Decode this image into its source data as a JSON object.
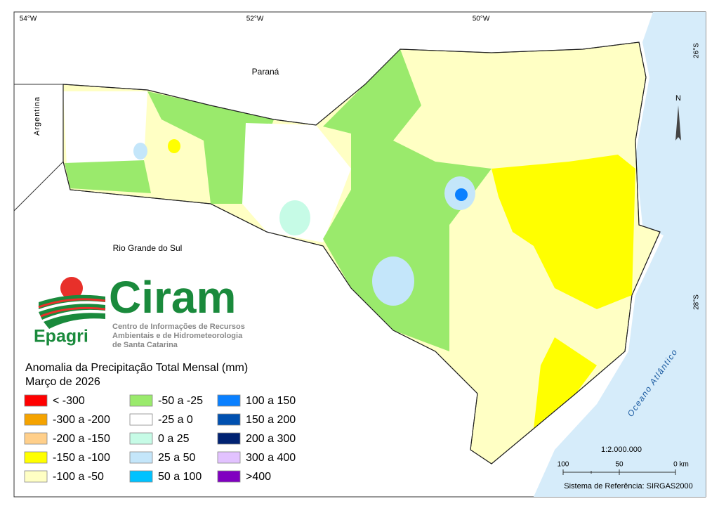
{
  "map": {
    "graticule_top": [
      "54°W",
      "52°W",
      "50°W"
    ],
    "graticule_right": [
      "26°S",
      "28°S"
    ],
    "places": {
      "north": "Paraná",
      "west": "Argentina",
      "south": "Rio Grande do Sul"
    },
    "ocean": "Oceano Atlântico",
    "north_arrow": "N"
  },
  "logo": {
    "name": "Ciram",
    "org": "Epagri",
    "subtitle": [
      "Centro de Informações de Recursos",
      "Ambientais e de Hidrometeorologia",
      "de Santa Catarina"
    ]
  },
  "legend": {
    "title": "Anomalia da Precipitação Total Mensal (mm)",
    "period": "Março de 2026",
    "items": [
      {
        "label": "< -300",
        "color": "#ff0000"
      },
      {
        "label": "-300 a -200",
        "color": "#f5a300"
      },
      {
        "label": "-200 a -150",
        "color": "#ffcf8a"
      },
      {
        "label": "-150 a -100",
        "color": "#ffff00"
      },
      {
        "label": "-100 a -50",
        "color": "#ffffc4"
      },
      {
        "label": "-50 a -25",
        "color": "#9aea6c"
      },
      {
        "label": "-25 a 0",
        "color": "#ffffff"
      },
      {
        "label": "0 a 25",
        "color": "#c6fbe6"
      },
      {
        "label": "25 a 50",
        "color": "#c4e6fa"
      },
      {
        "label": "50 a 100",
        "color": "#00c2ff"
      },
      {
        "label": "100 a 150",
        "color": "#0a80ff"
      },
      {
        "label": "150 a 200",
        "color": "#0050b0"
      },
      {
        "label": "200 a 300",
        "color": "#002272"
      },
      {
        "label": "300 a 400",
        "color": "#e2c2ff"
      },
      {
        "label": ">400",
        "color": "#8000c0"
      }
    ]
  },
  "scale": {
    "ratio": "1:2.000.000",
    "ticks": [
      "100",
      "50",
      "0 km"
    ]
  },
  "reference": "Sistema de Referência: SIRGAS2000"
}
